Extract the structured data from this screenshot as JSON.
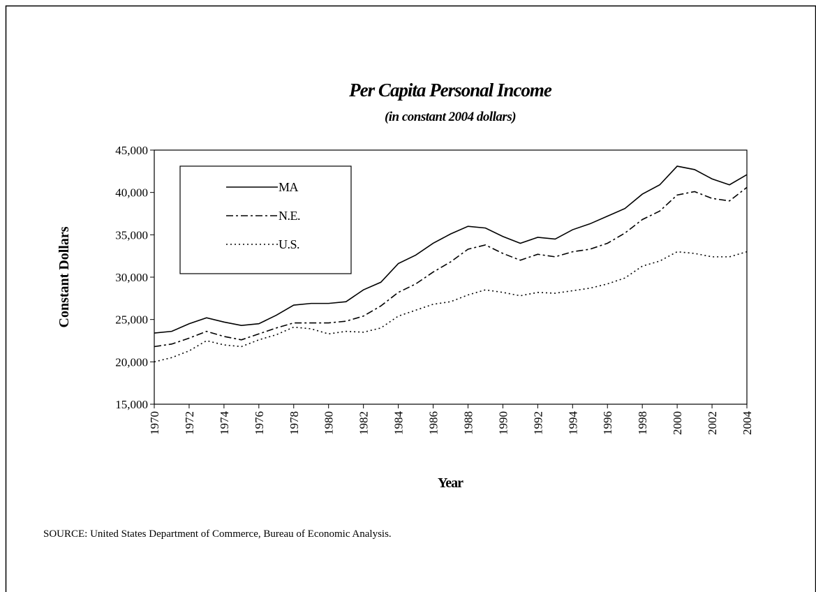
{
  "chart_data": {
    "type": "line",
    "title": "Per Capita Personal Income",
    "subtitle": "(in constant 2004 dollars)",
    "x_label": "Year",
    "y_label": "Constant Dollars",
    "source": "SOURCE:  United States Department of Commerce, Bureau of Economic Analysis.",
    "x": [
      1970,
      1971,
      1972,
      1973,
      1974,
      1975,
      1976,
      1977,
      1978,
      1979,
      1980,
      1981,
      1982,
      1983,
      1984,
      1985,
      1986,
      1987,
      1988,
      1989,
      1990,
      1991,
      1992,
      1993,
      1994,
      1995,
      1996,
      1997,
      1998,
      1999,
      2000,
      2001,
      2002,
      2003,
      2004
    ],
    "series": [
      {
        "name": "MA",
        "color": "#000000",
        "dash": "solid",
        "values": [
          23400,
          23600,
          24500,
          25200,
          24700,
          24300,
          24500,
          25500,
          26700,
          26900,
          26900,
          27100,
          28500,
          29400,
          31600,
          32600,
          34000,
          35100,
          36000,
          35800,
          34800,
          34000,
          34700,
          34500,
          35600,
          36300,
          37200,
          38100,
          39800,
          40900,
          43100,
          42700,
          41600,
          40900,
          42100
        ]
      },
      {
        "name": "N.E.",
        "color": "#000000",
        "dash": "dash-dot",
        "values": [
          21800,
          22100,
          22800,
          23600,
          23000,
          22600,
          23300,
          24000,
          24600,
          24600,
          24600,
          24800,
          25400,
          26600,
          28200,
          29200,
          30600,
          31800,
          33300,
          33800,
          32800,
          32000,
          32700,
          32400,
          33000,
          33300,
          34000,
          35200,
          36800,
          37800,
          39700,
          40100,
          39300,
          39000,
          40600
        ]
      },
      {
        "name": "U.S.",
        "color": "#000000",
        "dash": "dotted",
        "values": [
          20000,
          20500,
          21300,
          22500,
          22000,
          21800,
          22600,
          23200,
          24100,
          23900,
          23300,
          23600,
          23500,
          24000,
          25400,
          26100,
          26800,
          27100,
          27900,
          28500,
          28200,
          27800,
          28200,
          28100,
          28400,
          28700,
          29200,
          29900,
          31300,
          31900,
          33000,
          32800,
          32400,
          32400,
          33000
        ]
      }
    ],
    "xlim": [
      1970,
      2004
    ],
    "xticks": [
      1970,
      1972,
      1974,
      1976,
      1978,
      1980,
      1982,
      1984,
      1986,
      1988,
      1990,
      1992,
      1994,
      1996,
      1998,
      2000,
      2002,
      2004
    ],
    "ylim": [
      15000,
      45000
    ],
    "yticks": [
      {
        "value": 15000,
        "label": "15,000"
      },
      {
        "value": 20000,
        "label": "20,000"
      },
      {
        "value": 25000,
        "label": "25,000"
      },
      {
        "value": 30000,
        "label": "30,000"
      },
      {
        "value": 35000,
        "label": "35,000"
      },
      {
        "value": 40000,
        "label": "40,000"
      },
      {
        "value": 45000,
        "label": "45,000"
      }
    ],
    "legend": "upper left"
  }
}
